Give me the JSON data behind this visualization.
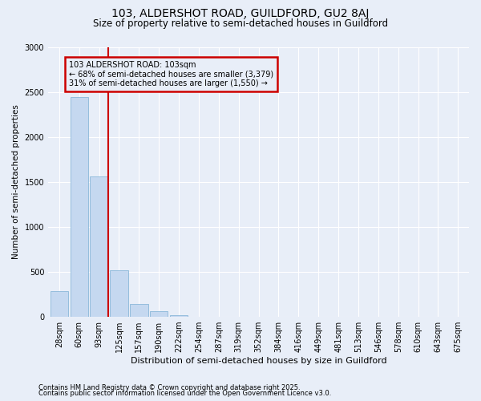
{
  "title1": "103, ALDERSHOT ROAD, GUILDFORD, GU2 8AJ",
  "title2": "Size of property relative to semi-detached houses in Guildford",
  "xlabel": "Distribution of semi-detached houses by size in Guildford",
  "ylabel": "Number of semi-detached properties",
  "categories": [
    "28sqm",
    "60sqm",
    "93sqm",
    "125sqm",
    "157sqm",
    "190sqm",
    "222sqm",
    "254sqm",
    "287sqm",
    "319sqm",
    "352sqm",
    "384sqm",
    "416sqm",
    "449sqm",
    "481sqm",
    "513sqm",
    "546sqm",
    "578sqm",
    "610sqm",
    "643sqm",
    "675sqm"
  ],
  "values": [
    290,
    2450,
    1560,
    520,
    140,
    60,
    20,
    5,
    0,
    0,
    0,
    0,
    0,
    0,
    0,
    0,
    0,
    0,
    0,
    0,
    0
  ],
  "bar_color": "#c5d8f0",
  "bar_edge_color": "#7bafd4",
  "vline_color": "#cc0000",
  "annotation_title": "103 ALDERSHOT ROAD: 103sqm",
  "annotation_line2": "← 68% of semi-detached houses are smaller (3,379)",
  "annotation_line3": "31% of semi-detached houses are larger (1,550) →",
  "annotation_box_color": "#cc0000",
  "ylim": [
    0,
    3000
  ],
  "yticks": [
    0,
    500,
    1000,
    1500,
    2000,
    2500,
    3000
  ],
  "footnote1": "Contains HM Land Registry data © Crown copyright and database right 2025.",
  "footnote2": "Contains public sector information licensed under the Open Government Licence v3.0.",
  "background_color": "#e8eef8",
  "grid_color": "#ffffff",
  "title1_fontsize": 10,
  "title2_fontsize": 8.5,
  "xlabel_fontsize": 8,
  "ylabel_fontsize": 7.5,
  "tick_fontsize": 7,
  "footnote_fontsize": 6,
  "ann_fontsize": 7
}
